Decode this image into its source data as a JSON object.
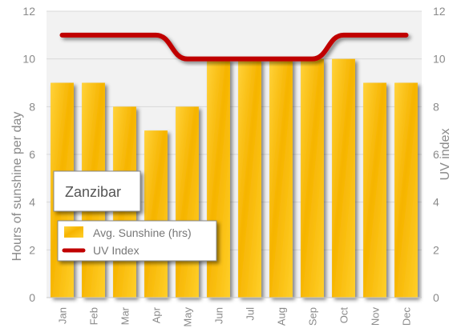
{
  "chart_data": {
    "type": "bar",
    "title": "Zanzibar",
    "categories": [
      "Jan",
      "Feb",
      "Mar",
      "Apr",
      "May",
      "Jun",
      "Jul",
      "Aug",
      "Sep",
      "Oct",
      "Nov",
      "Dec"
    ],
    "series": [
      {
        "name": "Avg. Sunshine (hrs)",
        "type": "bar",
        "axis": "left",
        "values": [
          9,
          9,
          8,
          7,
          8,
          10,
          10,
          10,
          10,
          10,
          9,
          9
        ]
      },
      {
        "name": "UV Index",
        "type": "line",
        "axis": "right",
        "values": [
          11,
          11,
          11,
          11,
          10,
          10,
          10,
          10,
          10,
          11,
          11,
          11
        ]
      }
    ],
    "ylabel": "Hours of sunshine per day",
    "y2label": "UV index",
    "ylim": [
      0,
      12
    ],
    "y2lim": [
      0,
      12
    ],
    "yticks": [
      0,
      2,
      4,
      6,
      8,
      10,
      12
    ],
    "grid": true,
    "legend": "bottom-left",
    "colors": {
      "bar": "#f5b800",
      "line": "#c00000",
      "plot_background": "#f2f2f2"
    }
  }
}
